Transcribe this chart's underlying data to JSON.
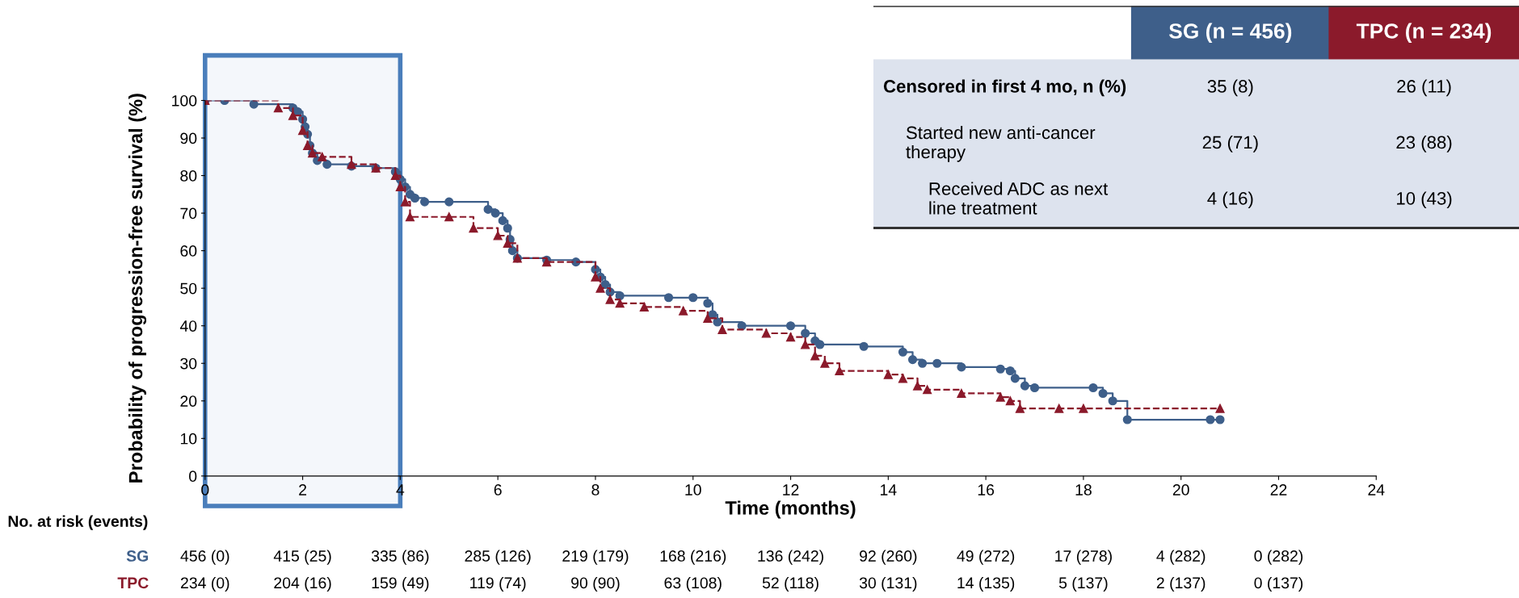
{
  "chart_data": [
    {
      "type": "step",
      "xlabel": "Time (months)",
      "ylabel": "Probability of progression-free survival (%)",
      "xlim": [
        0,
        24
      ],
      "xticks": [
        0,
        2,
        4,
        6,
        8,
        10,
        12,
        14,
        16,
        18,
        20,
        22,
        24
      ],
      "ylim": [
        0,
        100
      ],
      "yticks": [
        0,
        10,
        20,
        30,
        40,
        50,
        60,
        70,
        80,
        90,
        100
      ],
      "grid": false,
      "legend": false,
      "bands": [
        {
          "axis": "x",
          "from": 0,
          "to": 4,
          "color": "#4a7ebb"
        }
      ],
      "series": [
        {
          "name": "SG",
          "color": "#3e5f8a",
          "marker": "circle",
          "line_style": "solid",
          "x": [
            0,
            0.4,
            1.0,
            1.8,
            1.9,
            2.0,
            2.05,
            2.1,
            2.15,
            2.2,
            2.3,
            2.5,
            3.0,
            3.5,
            3.9,
            4.0,
            4.1,
            4.2,
            4.3,
            4.5,
            5.0,
            5.8,
            5.95,
            6.1,
            6.2,
            6.25,
            6.3,
            6.4,
            7.0,
            7.6,
            8.0,
            8.1,
            8.2,
            8.3,
            8.5,
            9.5,
            10.0,
            10.3,
            10.4,
            10.5,
            11.0,
            12.0,
            12.3,
            12.5,
            12.6,
            13.5,
            14.3,
            14.5,
            14.7,
            15.0,
            15.5,
            16.3,
            16.5,
            16.6,
            16.8,
            17.0,
            18.2,
            18.4,
            18.6,
            18.9,
            20.6,
            20.8
          ],
          "values": [
            100,
            100,
            99,
            98,
            97,
            95,
            93,
            91,
            88,
            86,
            84,
            83,
            82.5,
            82,
            81,
            79,
            77,
            75,
            74,
            73,
            73,
            71,
            70,
            68,
            66,
            63,
            60,
            58,
            57.5,
            57,
            55,
            53,
            51,
            49,
            48,
            47.5,
            47.5,
            46,
            43,
            41,
            40,
            40,
            38,
            36,
            35,
            34.5,
            33,
            31,
            30,
            30,
            29,
            28.5,
            28,
            26,
            24,
            23.5,
            23.5,
            22,
            20,
            15,
            15,
            15
          ]
        },
        {
          "name": "TPC",
          "color": "#8b1a2b",
          "marker": "triangle",
          "line_style": "dashed",
          "x": [
            0,
            1.5,
            1.8,
            2.0,
            2.1,
            2.2,
            2.4,
            3.0,
            3.5,
            3.9,
            4.0,
            4.1,
            4.2,
            5.0,
            5.5,
            6.0,
            6.2,
            6.4,
            7.0,
            8.0,
            8.1,
            8.3,
            8.5,
            9.0,
            9.8,
            10.3,
            10.6,
            11.5,
            12.0,
            12.3,
            12.5,
            12.7,
            13.0,
            14.0,
            14.3,
            14.6,
            14.8,
            15.5,
            16.3,
            16.5,
            16.7,
            17.5,
            18.0,
            20.8
          ],
          "values": [
            100,
            98,
            96,
            92,
            88,
            86,
            85,
            83,
            82,
            80,
            77,
            73,
            69,
            69,
            66,
            64,
            62,
            58,
            57,
            53,
            50,
            47,
            46,
            45,
            44,
            42,
            39,
            38,
            37,
            35,
            32,
            30,
            28,
            27,
            26,
            24,
            23,
            22,
            21,
            20,
            18,
            18,
            18,
            18
          ]
        }
      ],
      "annotations": [
        "No. at risk (events)",
        "456 (0)",
        "415 (25)",
        "335 (86)",
        "285 (126)",
        "219 (179)",
        "168 (216)",
        "136 (242)",
        "92 (260)",
        "49 (272)",
        "17 (278)",
        "4 (282)",
        "0 (282)",
        "234 (0)",
        "204 (16)",
        "159 (49)",
        "119 (74)",
        "90 (90)",
        "63 (108)",
        "52 (118)",
        "30 (131)",
        "14 (135)",
        "5 (137)",
        "2 (137)",
        "0 (137)"
      ]
    },
    {
      "type": "other",
      "annotations": [
        "SG (n = 456)",
        "TPC (n = 234)",
        "Censored in first 4 mo, n (%)",
        "35 (8)",
        "26 (11)",
        "Started new anti-cancer\ntherapy",
        "25 (71)",
        "23 (88)",
        "Received ADC as next\nline treatment",
        "4 (16)",
        "10 (43)"
      ]
    }
  ]
}
